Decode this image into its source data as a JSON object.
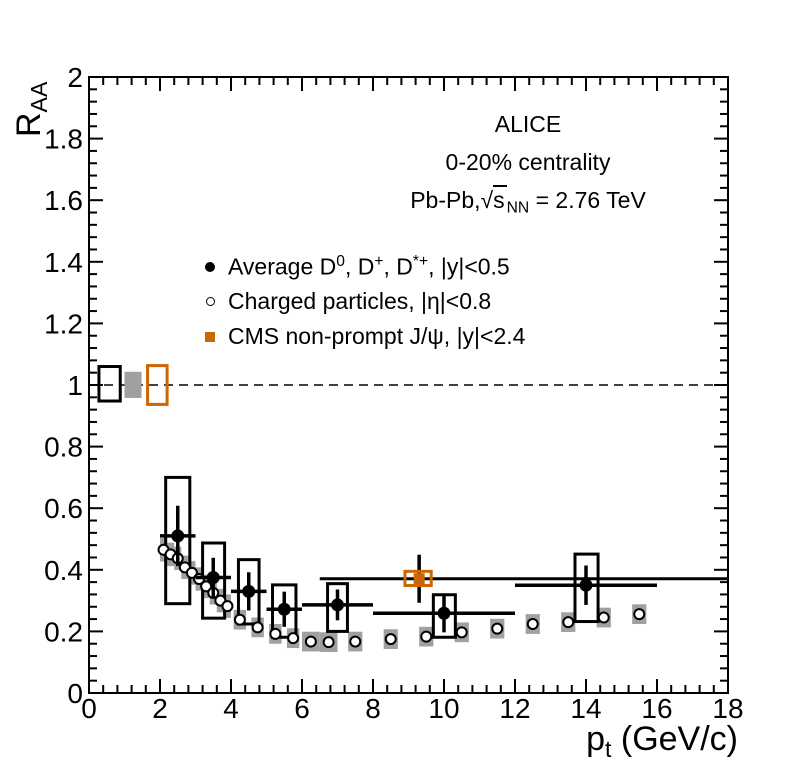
{
  "colors": {
    "foreground": "#000000",
    "background": "#FFFFFF",
    "charged_syst_gray": "#A0A0A0",
    "cms_orange": "#CC6600"
  },
  "annotations": {
    "lines": [
      {
        "name": "experiment",
        "text": "ALICE",
        "segments": [
          {
            "t": "ALICE"
          }
        ]
      },
      {
        "name": "centrality",
        "text": "0-20% centrality",
        "segments": [
          {
            "t": "0-20% centrality"
          }
        ]
      },
      {
        "name": "system-energy",
        "text": "Pb-Pb, sqrt(sNN) = 2.76 TeV",
        "segments": [
          {
            "t": "Pb-Pb,"
          },
          {
            "t": "√"
          },
          {
            "t": "s",
            "cls": "radicand"
          },
          {
            "t": "NN",
            "cls": "sub"
          },
          {
            "t": " = 2.76 TeV"
          }
        ]
      }
    ]
  },
  "legend": {
    "items": [
      {
        "marker": "filled-circle",
        "color": "#000000",
        "label": "Average D0, D+, D*+, |y|<0.5",
        "segments": [
          {
            "t": "Average D"
          },
          {
            "t": "0",
            "cls": "sup"
          },
          {
            "t": ", D"
          },
          {
            "t": "+",
            "cls": "sup"
          },
          {
            "t": ", D"
          },
          {
            "t": "*+",
            "cls": "sup"
          },
          {
            "t": ", |y|<0.5"
          }
        ]
      },
      {
        "marker": "open-circle",
        "color": "#000000",
        "label": "Charged particles, |eta|<0.8",
        "segments": [
          {
            "t": "Charged particles, |η|<0.8"
          }
        ]
      },
      {
        "marker": "filled-square",
        "color": "#CC6600",
        "label": "CMS non-prompt J/psi, |y|<2.4",
        "segments": [
          {
            "t": "CMS non-prompt J/ψ, |y|<2.4"
          }
        ]
      }
    ]
  },
  "chart_data": {
    "type": "scatter",
    "title": "ALICE 0-20% centrality Pb-Pb sqrt(sNN) = 2.76 TeV",
    "xlabel": "pt (GeV/c)",
    "ylabel": "RAA",
    "xlabel_segments": [
      {
        "t": "p"
      },
      {
        "t": "t",
        "cls": "sub"
      },
      {
        "t": " (GeV/c)"
      }
    ],
    "ylabel_segments": [
      {
        "t": "R"
      },
      {
        "t": "AA",
        "cls": "sub"
      }
    ],
    "xlim": [
      0,
      18
    ],
    "ylim": [
      0,
      2
    ],
    "grid": false,
    "legend_position": "upper-left-of-center",
    "x_ticks": {
      "major": [
        0,
        2,
        4,
        6,
        8,
        10,
        12,
        14,
        16,
        18
      ],
      "labels": [
        "0",
        "2",
        "4",
        "6",
        "8",
        "10",
        "12",
        "14",
        "16",
        "18"
      ],
      "minor_step": 0.4
    },
    "y_ticks": {
      "major": [
        0,
        0.2,
        0.4,
        0.6,
        0.8,
        1,
        1.2,
        1.4,
        1.6,
        1.8,
        2
      ],
      "labels": [
        "0",
        "0.2",
        "0.4",
        "0.6",
        "0.8",
        "1",
        "1.2",
        "1.4",
        "1.6",
        "1.8",
        "2"
      ],
      "minor_step": 0.04
    },
    "reference_line": {
      "y": 1,
      "style": "dashed"
    },
    "normalization_boxes": [
      {
        "series": "d-mesons",
        "style": "open",
        "color": "#000000",
        "x": [
          0.28,
          0.88
        ],
        "y": [
          0.948,
          1.06
        ]
      },
      {
        "series": "charged",
        "style": "filled",
        "color": "#A0A0A0",
        "x": [
          1.0,
          1.48
        ],
        "y": [
          0.958,
          1.043
        ]
      },
      {
        "series": "cms",
        "style": "open",
        "color": "#CC6600",
        "x": [
          1.65,
          2.2
        ],
        "y": [
          0.937,
          1.063
        ]
      }
    ],
    "series": [
      {
        "id": "d_mesons",
        "name": "Average D0, D+, D*+, |y|<0.5",
        "marker": "filled-circle",
        "color": "#000000",
        "points": [
          {
            "x": 2.5,
            "y": 0.51,
            "stat": 0.098,
            "bin": [
              2,
              3
            ],
            "syst_x": [
              2.16,
              2.84
            ],
            "syst_y": [
              0.29,
              0.7
            ]
          },
          {
            "x": 3.5,
            "y": 0.375,
            "stat": 0.064,
            "bin": [
              3,
              4
            ],
            "syst_x": [
              3.2,
              3.82
            ],
            "syst_y": [
              0.243,
              0.487
            ]
          },
          {
            "x": 4.5,
            "y": 0.33,
            "stat": 0.062,
            "bin": [
              4,
              5
            ],
            "syst_x": [
              4.21,
              4.79
            ],
            "syst_y": [
              0.224,
              0.433
            ]
          },
          {
            "x": 5.5,
            "y": 0.272,
            "stat": 0.057,
            "bin": [
              5,
              6
            ],
            "syst_x": [
              5.17,
              5.83
            ],
            "syst_y": [
              0.181,
              0.351
            ]
          },
          {
            "x": 7.0,
            "y": 0.286,
            "stat": 0.05,
            "bin": [
              6,
              8
            ],
            "syst_x": [
              6.72,
              7.28
            ],
            "syst_y": [
              0.2,
              0.355
            ]
          },
          {
            "x": 10.0,
            "y": 0.259,
            "stat": 0.062,
            "bin": [
              8,
              12
            ],
            "syst_x": [
              9.7,
              10.32
            ],
            "syst_y": [
              0.181,
              0.319
            ]
          },
          {
            "x": 14.0,
            "y": 0.35,
            "stat": 0.064,
            "bin": [
              12,
              16
            ],
            "syst_x": [
              13.69,
              14.34
            ],
            "syst_y": [
              0.232,
              0.451
            ]
          }
        ]
      },
      {
        "id": "charged",
        "name": "Charged particles, |eta|<0.8",
        "marker": "open-circle",
        "color": "#000000",
        "box_color": "#A0A0A0",
        "x": [
          2.1,
          2.3,
          2.5,
          2.7,
          2.9,
          3.1,
          3.3,
          3.5,
          3.7,
          3.9,
          4.25,
          4.75,
          5.25,
          5.75,
          6.25,
          6.75,
          7.5,
          8.5,
          9.5,
          10.5,
          11.5,
          12.5,
          13.5,
          14.5,
          15.5
        ],
        "y": [
          0.465,
          0.45,
          0.437,
          0.408,
          0.39,
          0.37,
          0.346,
          0.325,
          0.3,
          0.282,
          0.238,
          0.213,
          0.192,
          0.178,
          0.167,
          0.165,
          0.167,
          0.175,
          0.183,
          0.197,
          0.209,
          0.224,
          0.23,
          0.245,
          0.256
        ],
        "box_half_width": [
          0.1,
          0.1,
          0.1,
          0.1,
          0.1,
          0.1,
          0.1,
          0.1,
          0.1,
          0.1,
          0.175,
          0.175,
          0.175,
          0.175,
          0.25,
          0.25,
          0.2,
          0.2,
          0.2,
          0.2,
          0.2,
          0.2,
          0.2,
          0.2,
          0.2
        ],
        "box_half_height": [
          0.038,
          0.038,
          0.038,
          0.038,
          0.038,
          0.038,
          0.038,
          0.038,
          0.038,
          0.038,
          0.032,
          0.032,
          0.032,
          0.032,
          0.032,
          0.032,
          0.032,
          0.032,
          0.032,
          0.032,
          0.032,
          0.032,
          0.032,
          0.032,
          0.032
        ]
      },
      {
        "id": "cms",
        "name": "CMS non-prompt J/psi, |y|<2.4",
        "marker": "filled-square",
        "color": "#CC6600",
        "points": [
          {
            "x": 9.3,
            "y": 0.371,
            "stat": 0.078,
            "bin": [
              6.5,
              18
            ],
            "syst_x": [
              8.9,
              9.64
            ],
            "syst_y": [
              0.349,
              0.395
            ]
          }
        ]
      }
    ]
  }
}
